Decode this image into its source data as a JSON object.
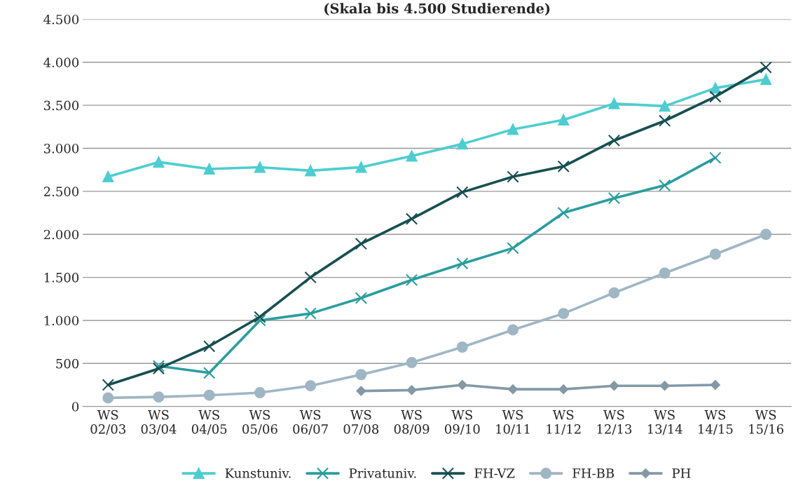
{
  "chart_data": {
    "type": "line",
    "title": "(Skala bis 4.500 Studierende)",
    "categories": [
      "WS\n02/03",
      "WS\n03/04",
      "WS\n04/05",
      "WS\n05/06",
      "WS\n06/07",
      "WS\n07/08",
      "WS\n08/09",
      "WS\n09/10",
      "WS\n10/11",
      "WS\n11/12",
      "WS\n12/13",
      "WS\n13/14",
      "WS\n14/15",
      "WS\n15/16"
    ],
    "series": [
      {
        "name": "Kunstuniv.",
        "color": "#4ecdd0",
        "marker": "triangle",
        "values": [
          2670,
          2840,
          2760,
          2780,
          2740,
          2780,
          2910,
          3050,
          3220,
          3330,
          3520,
          3490,
          3700,
          3800
        ]
      },
      {
        "name": "Privatuniv.",
        "color": "#2a9d9e",
        "marker": "cross",
        "values": [
          null,
          470,
          390,
          1000,
          1080,
          1260,
          1470,
          1660,
          1840,
          2250,
          2420,
          2570,
          2890,
          null
        ]
      },
      {
        "name": "FH-VZ",
        "color": "#174f52",
        "marker": "cross",
        "values": [
          250,
          440,
          700,
          1040,
          1500,
          1890,
          2180,
          2490,
          2670,
          2790,
          3090,
          3320,
          3600,
          3940
        ]
      },
      {
        "name": "FH-BB",
        "color": "#9fb6c4",
        "marker": "circle",
        "values": [
          100,
          110,
          130,
          160,
          240,
          370,
          510,
          690,
          890,
          1080,
          1320,
          1550,
          1770,
          2000
        ]
      },
      {
        "name": "PH",
        "color": "#8399a6",
        "marker": "diamond",
        "values": [
          null,
          null,
          null,
          null,
          null,
          180,
          190,
          250,
          200,
          200,
          240,
          240,
          250,
          null
        ]
      }
    ],
    "ylim": [
      0,
      4500
    ],
    "yticks": [
      0,
      500,
      {
        "value": 1000,
        "label": "1.000"
      },
      {
        "value": 1500,
        "label": "1.500"
      },
      {
        "value": 2000,
        "label": "2.000"
      },
      {
        "value": 2500,
        "label": "2.500"
      },
      {
        "value": 3000,
        "label": "3.000"
      },
      {
        "value": 3500,
        "label": "3.500"
      },
      {
        "value": 4000,
        "label": "4.000"
      },
      {
        "value": 4500,
        "label": "4.500"
      }
    ],
    "grid": "y",
    "legend": "bottom",
    "line_style": "solid"
  }
}
